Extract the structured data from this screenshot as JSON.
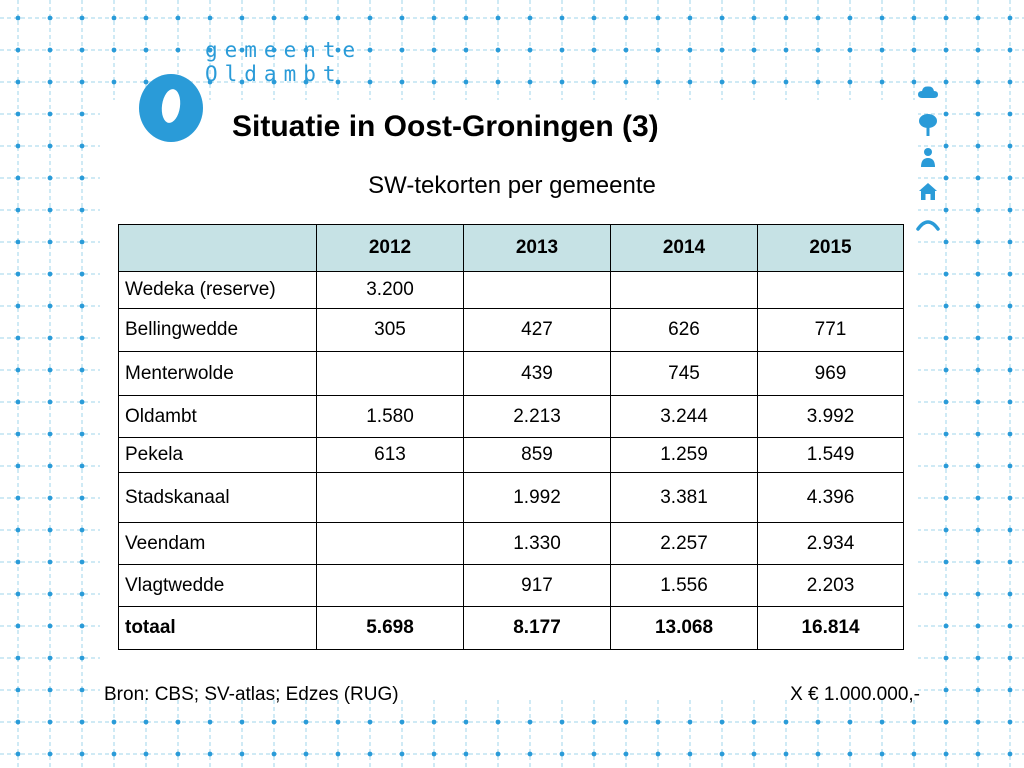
{
  "logo": {
    "line1": "gemeente",
    "line2": "Oldambt"
  },
  "slide": {
    "title": "Situatie in Oost-Groningen (3)",
    "subtitle": "SW-tekorten per gemeente"
  },
  "table": {
    "header": [
      "",
      "2012",
      "2013",
      "2014",
      "2015"
    ],
    "rows": [
      [
        "Wedeka (reserve)",
        "3.200",
        "",
        "",
        ""
      ],
      [
        "Bellingwedde",
        "305",
        "427",
        "626",
        "771"
      ],
      [
        "Menterwolde",
        "",
        "439",
        "745",
        "969"
      ],
      [
        "Oldambt",
        "1.580",
        "2.213",
        "3.244",
        "3.992"
      ],
      [
        "Pekela",
        "613",
        "859",
        "1.259",
        "1.549"
      ],
      [
        "Stadskanaal",
        "",
        "1.992",
        "3.381",
        "4.396"
      ],
      [
        "Veendam",
        "",
        "1.330",
        "2.257",
        "2.934"
      ],
      [
        "Vlagtwedde",
        "",
        "917",
        "1.556",
        "2.203"
      ],
      [
        "totaal",
        "5.698",
        "8.177",
        "13.068",
        "16.814"
      ]
    ]
  },
  "footer": {
    "source": "Bron: CBS; SV-atlas; Edzes (RUG)",
    "unit": "X € 1.000.000,-"
  },
  "colors": {
    "brand_blue": "#2a9bd8",
    "header_fill": "#c6e2e5",
    "grid_line": "#bfe3f2"
  },
  "side_icons": [
    "cloud-icon",
    "tree-icon",
    "person-icon",
    "house-icon",
    "wave-icon"
  ]
}
